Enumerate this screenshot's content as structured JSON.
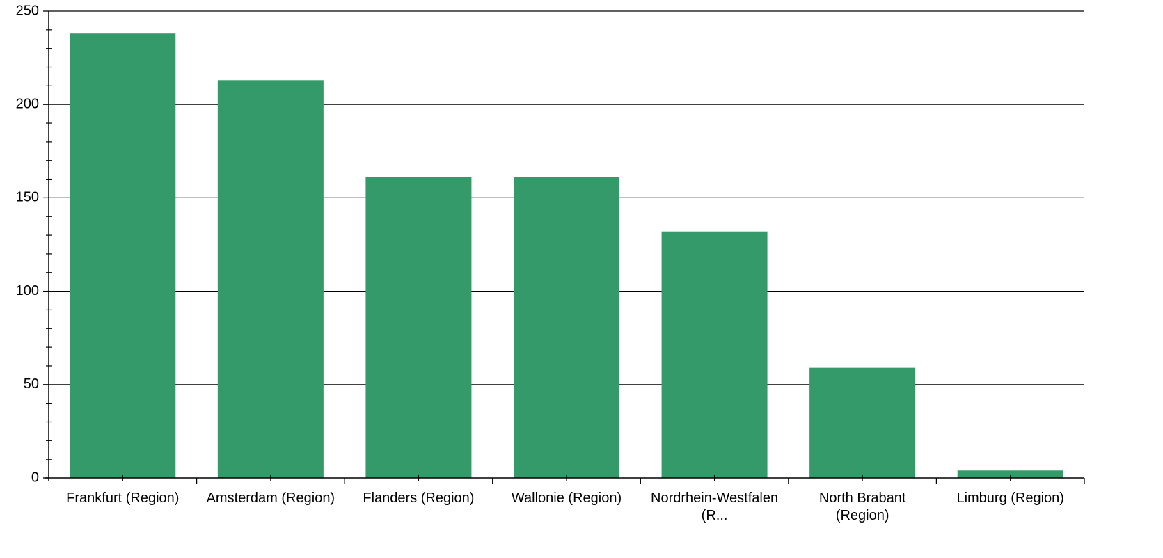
{
  "chart_data": {
    "type": "bar",
    "title": "",
    "xlabel": "",
    "ylabel": "",
    "categories": [
      [
        "Frankfurt (Region)"
      ],
      [
        "Amsterdam (Region)"
      ],
      [
        "Flanders (Region)"
      ],
      [
        "Wallonie (Region)"
      ],
      [
        "Nordrhein-Westfalen",
        "(R..."
      ],
      [
        "North Brabant",
        "(Region)"
      ],
      [
        "Limburg (Region)"
      ]
    ],
    "values": [
      238,
      213,
      161,
      161,
      132,
      59,
      4
    ],
    "ylim": [
      0,
      250
    ],
    "yticks": [
      0,
      50,
      100,
      150,
      200,
      250
    ],
    "grid": true,
    "legend": "none",
    "colors": {
      "bar": "#359a69",
      "axis": "#000000",
      "grid": "#000000"
    }
  }
}
